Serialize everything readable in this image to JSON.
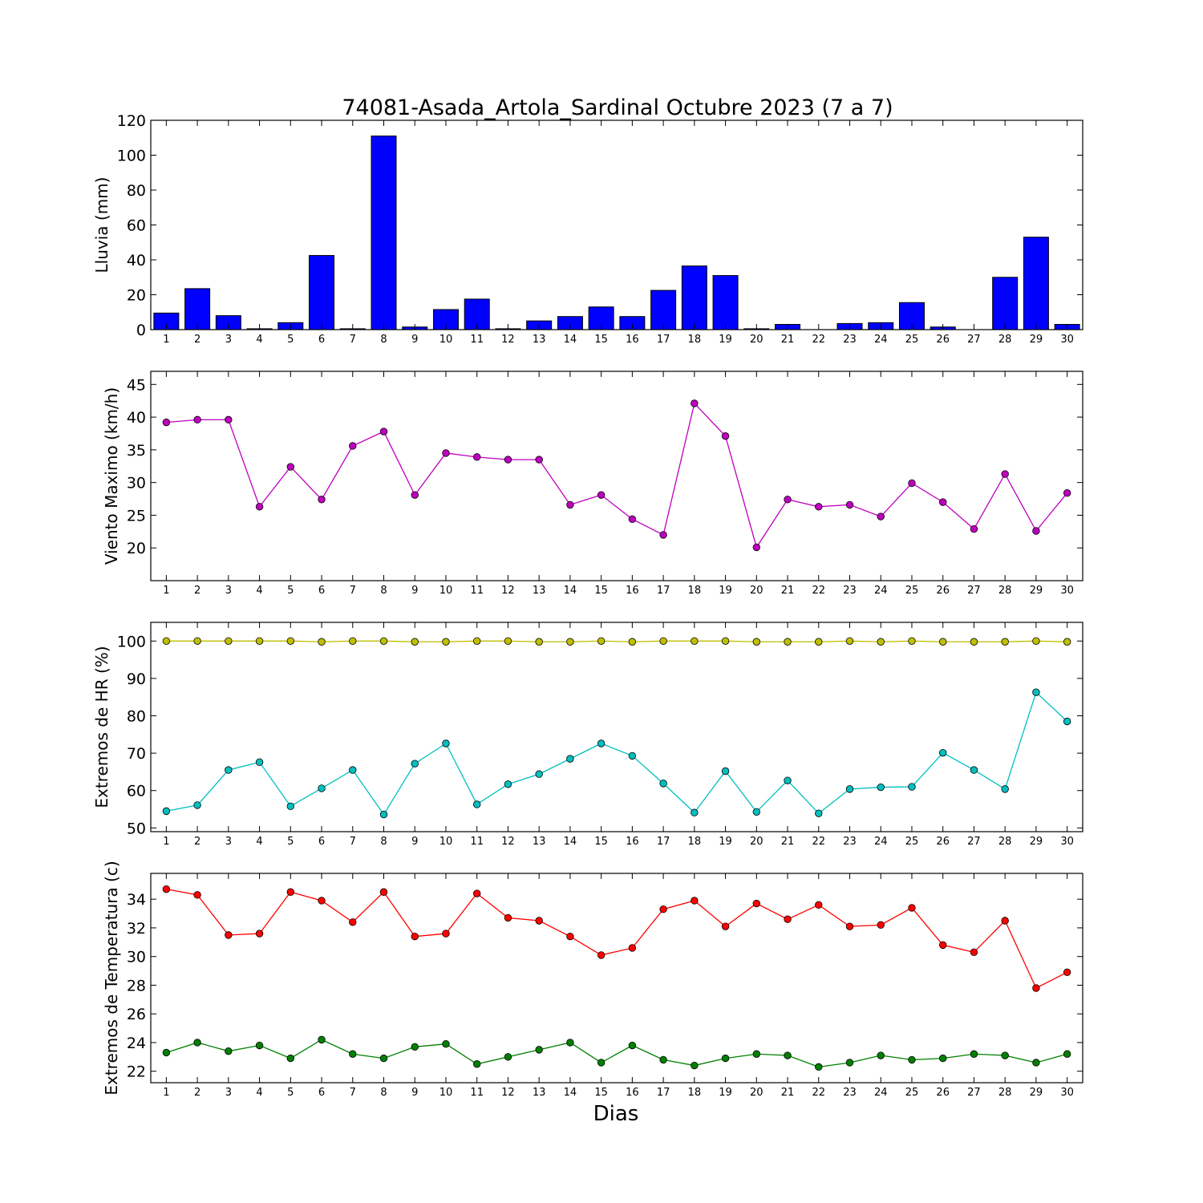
{
  "figure": {
    "title": "74081-Asada_Artola_Sardinal Octubre 2023  (7 a 7)",
    "xlabel": "Dias"
  },
  "chart_data": [
    {
      "type": "bar",
      "ylabel": "Lluvia (mm)",
      "ylim": [
        0,
        120
      ],
      "yticks": [
        0,
        20,
        40,
        60,
        80,
        100,
        120
      ],
      "categories": [
        "1",
        "2",
        "3",
        "4",
        "5",
        "6",
        "7",
        "8",
        "9",
        "10",
        "11",
        "12",
        "13",
        "14",
        "15",
        "16",
        "17",
        "18",
        "19",
        "20",
        "21",
        "22",
        "23",
        "24",
        "25",
        "26",
        "27",
        "28",
        "29",
        "30"
      ],
      "series": [
        {
          "color": "#0000ff",
          "values": [
            9.5,
            23.5,
            8,
            0.5,
            4,
            42.5,
            0.5,
            111,
            1.5,
            11.5,
            17.5,
            0.5,
            5,
            7.5,
            13,
            7.5,
            22.5,
            36.5,
            31,
            0.5,
            3,
            0,
            3.5,
            4,
            15.5,
            1.5,
            0,
            30,
            53,
            3
          ]
        }
      ],
      "grid": false
    },
    {
      "type": "line",
      "ylabel": "Viento Maximo (km/h)",
      "ylim": [
        15,
        47
      ],
      "yticks": [
        20,
        25,
        30,
        35,
        40,
        45
      ],
      "categories": [
        "1",
        "2",
        "3",
        "4",
        "5",
        "6",
        "7",
        "8",
        "9",
        "10",
        "11",
        "12",
        "13",
        "14",
        "15",
        "16",
        "17",
        "18",
        "19",
        "20",
        "21",
        "22",
        "23",
        "24",
        "25",
        "26",
        "27",
        "28",
        "29",
        "30"
      ],
      "series": [
        {
          "color": "#bf00bf",
          "values": [
            39.2,
            39.6,
            39.6,
            26.3,
            32.4,
            27.4,
            35.6,
            37.8,
            28.1,
            34.5,
            33.9,
            33.5,
            33.5,
            26.6,
            28.1,
            24.4,
            22.0,
            42.1,
            37.1,
            20.1,
            27.4,
            26.3,
            26.6,
            24.8,
            29.9,
            27.0,
            22.9,
            31.3,
            22.6,
            28.4
          ]
        }
      ],
      "grid": false
    },
    {
      "type": "line",
      "ylabel": "Extremos de HR (%)",
      "ylim": [
        49,
        105
      ],
      "yticks": [
        50,
        60,
        70,
        80,
        90,
        100
      ],
      "categories": [
        "1",
        "2",
        "3",
        "4",
        "5",
        "6",
        "7",
        "8",
        "9",
        "10",
        "11",
        "12",
        "13",
        "14",
        "15",
        "16",
        "17",
        "18",
        "19",
        "20",
        "21",
        "22",
        "23",
        "24",
        "25",
        "26",
        "27",
        "28",
        "29",
        "30"
      ],
      "series": [
        {
          "color": "#bfbf00",
          "values": [
            100,
            100,
            100,
            100,
            100,
            99.8,
            100,
            100,
            99.8,
            99.8,
            100,
            100,
            99.8,
            99.8,
            100,
            99.8,
            100,
            100,
            100,
            99.8,
            99.8,
            99.8,
            100,
            99.8,
            100,
            99.8,
            99.8,
            99.8,
            100,
            99.8
          ]
        },
        {
          "color": "#00bfbf",
          "values": [
            54.5,
            56.1,
            65.5,
            67.6,
            55.8,
            60.6,
            65.5,
            53.6,
            67.2,
            72.6,
            56.3,
            61.7,
            64.4,
            68.5,
            72.6,
            69.3,
            61.9,
            54.1,
            65.2,
            54.3,
            62.7,
            53.9,
            60.4,
            60.9,
            61.0,
            70.1,
            65.5,
            60.4,
            86.3,
            78.5
          ]
        }
      ],
      "grid": false
    },
    {
      "type": "line",
      "ylabel": "Extremos de Temperatura (c)",
      "ylim": [
        21.2,
        35.8
      ],
      "yticks": [
        22,
        24,
        26,
        28,
        30,
        32,
        34
      ],
      "categories": [
        "1",
        "2",
        "3",
        "4",
        "5",
        "6",
        "7",
        "8",
        "9",
        "10",
        "11",
        "12",
        "13",
        "14",
        "15",
        "16",
        "17",
        "18",
        "19",
        "20",
        "21",
        "22",
        "23",
        "24",
        "25",
        "26",
        "27",
        "28",
        "29",
        "30"
      ],
      "series": [
        {
          "color": "#ff0000",
          "values": [
            34.7,
            34.3,
            31.5,
            31.6,
            34.5,
            33.9,
            32.4,
            34.5,
            31.4,
            31.6,
            34.4,
            32.7,
            32.5,
            31.4,
            30.1,
            30.6,
            33.3,
            33.9,
            32.1,
            33.7,
            32.6,
            33.6,
            32.1,
            32.2,
            33.4,
            30.8,
            30.3,
            32.5,
            27.8,
            28.9
          ]
        },
        {
          "color": "#008000",
          "values": [
            23.3,
            24.0,
            23.4,
            23.8,
            22.9,
            24.2,
            23.2,
            22.9,
            23.7,
            23.9,
            22.5,
            23.0,
            23.5,
            24.0,
            22.6,
            23.8,
            22.8,
            22.4,
            22.9,
            23.2,
            23.1,
            22.3,
            22.6,
            23.1,
            22.8,
            22.9,
            23.2,
            23.1,
            22.6,
            23.2
          ]
        }
      ],
      "grid": false
    }
  ]
}
